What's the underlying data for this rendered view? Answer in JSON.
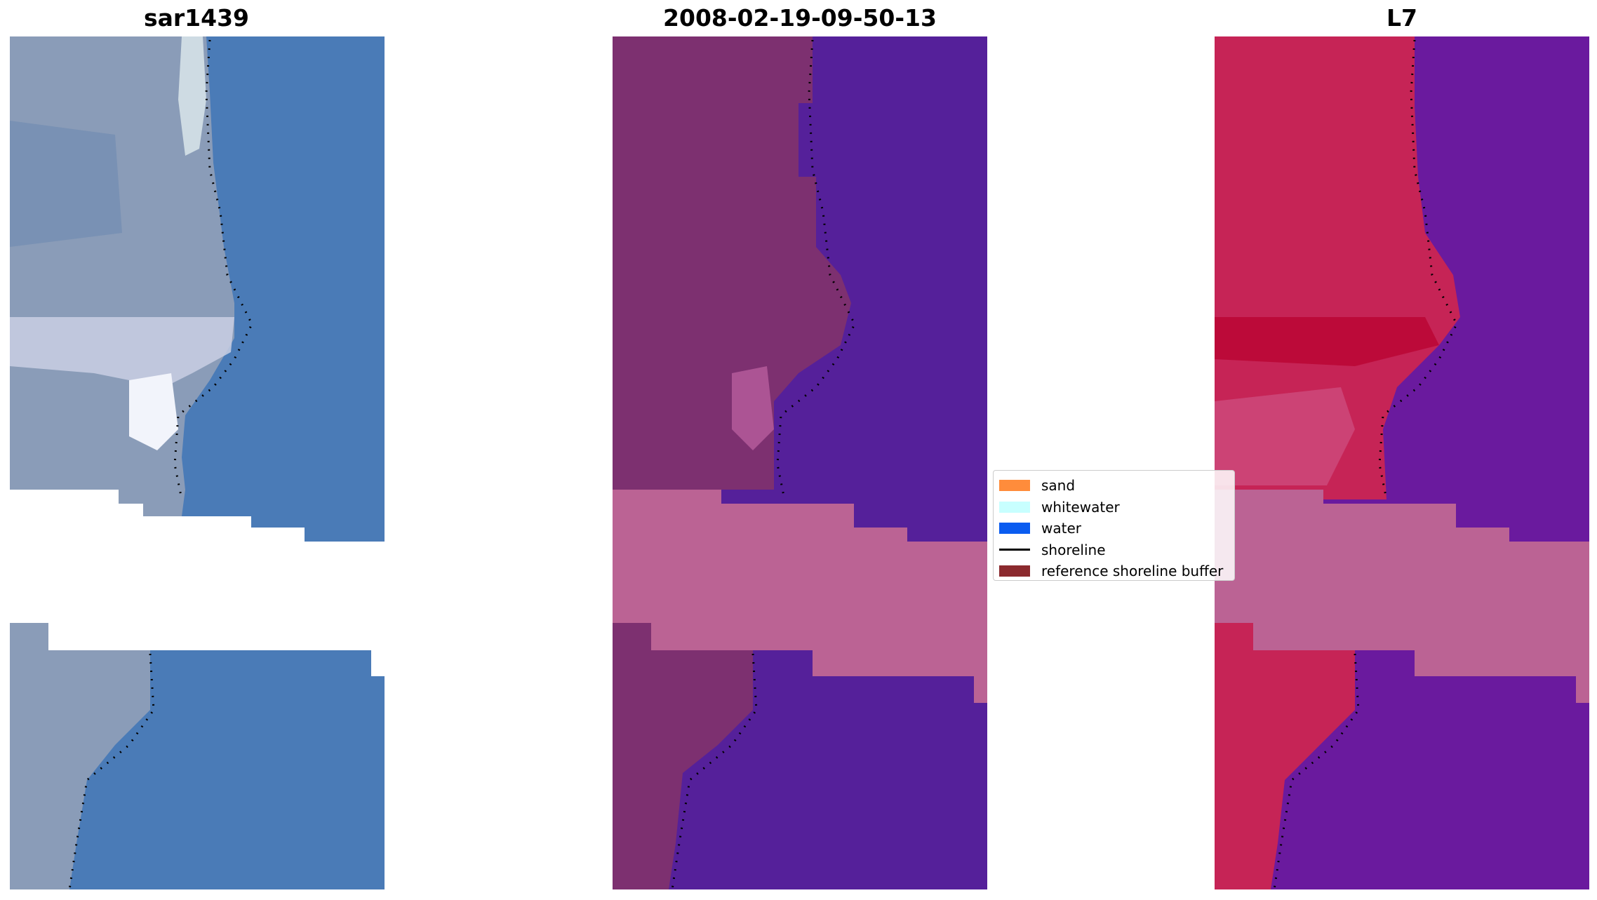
{
  "panels": [
    {
      "title": "sar1439",
      "image": "RGB satellite image of a beach: grey-white land strip and whitewater along the left, blue water on the right, with a dotted black shoreline"
    },
    {
      "title": "2008-02-19-09-50-13",
      "image": "classified image: purple-magenta sand/land on the left, dark indigo water on the right, pink no-data band across the middle, dotted black shoreline"
    },
    {
      "title": "L7",
      "image": "water index image: red/crimson land on the left, purple water on the right, pink no-data band across the middle, dotted black shoreline"
    }
  ],
  "legend": {
    "items": [
      {
        "label": "sand",
        "color": "#ff8c3b",
        "kind": "patch"
      },
      {
        "label": "whitewater",
        "color": "#c8ffff",
        "kind": "patch"
      },
      {
        "label": "water",
        "color": "#0a5cf0",
        "kind": "patch"
      },
      {
        "label": "shoreline",
        "color": "#000000",
        "kind": "line"
      },
      {
        "label": "reference shoreline buffer",
        "color": "#8b2a2e",
        "kind": "patch"
      }
    ]
  },
  "colors": {
    "rgb_land": "#8ea0bc",
    "rgb_water": "#4a7bb7",
    "rgb_whitewater": "#e8eef6",
    "class_land": "#7d3070",
    "class_water": "#55209a",
    "nodata": "#bb6394",
    "index_land": "#c62456",
    "index_water": "#6a1a9e"
  }
}
